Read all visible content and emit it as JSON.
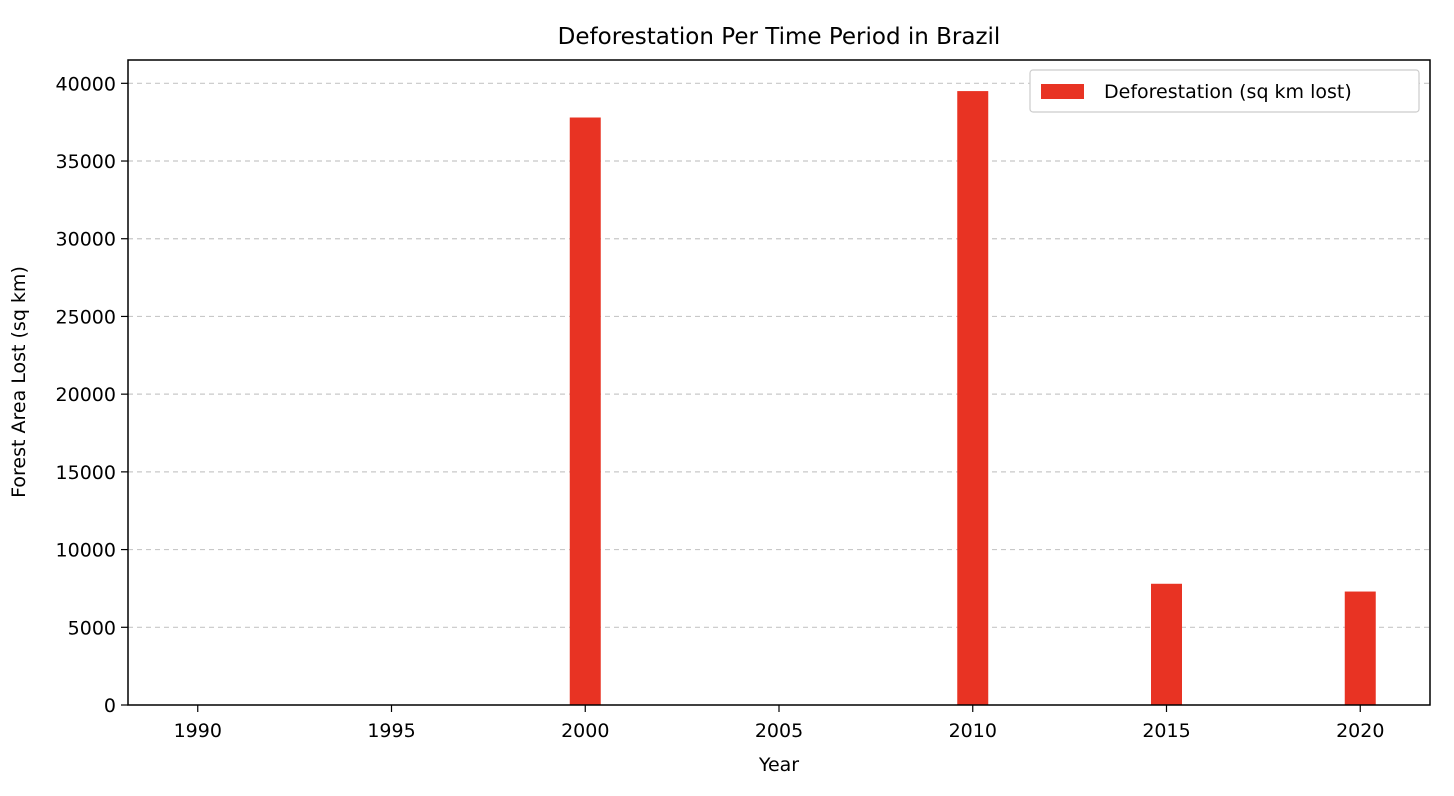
{
  "chart_data": {
    "type": "bar",
    "title": "Deforestation Per Time Period in Brazil",
    "xlabel": "Year",
    "ylabel": "Forest Area Lost (sq km)",
    "xlim": [
      1988.2,
      2021.8
    ],
    "ylim": [
      0,
      41500
    ],
    "x_ticks": [
      1990,
      1995,
      2000,
      2005,
      2010,
      2015,
      2020
    ],
    "y_ticks": [
      0,
      5000,
      10000,
      15000,
      20000,
      25000,
      30000,
      35000,
      40000
    ],
    "bar_width_years": 0.8,
    "grid": "horizontal dashed",
    "legend_position": "upper right",
    "series": [
      {
        "name": "Deforestation (sq km lost)",
        "color": "#e83323",
        "x": [
          1990,
          1995,
          2000,
          2005,
          2010,
          2015,
          2020
        ],
        "values": [
          0,
          0,
          37800,
          0,
          39500,
          7800,
          7300
        ]
      }
    ]
  }
}
